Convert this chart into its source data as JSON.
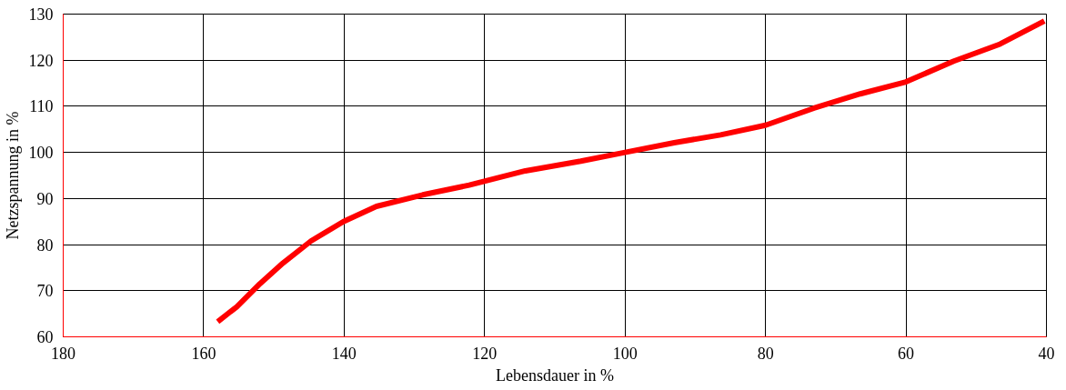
{
  "chart_data": {
    "type": "line",
    "xlabel": "Lebensdauer in %",
    "ylabel": "Netzspannung in %",
    "xlim": [
      180,
      40
    ],
    "ylim": [
      60,
      130
    ],
    "xticks": [
      180,
      160,
      140,
      120,
      100,
      80,
      60,
      40
    ],
    "yticks": [
      60,
      70,
      80,
      90,
      100,
      110,
      120,
      130
    ],
    "grid": true,
    "line_style": "solid",
    "marker": "none",
    "series": [
      {
        "color": "#ff0000",
        "x": [
          158,
          155.3,
          152,
          148.7,
          144.7,
          140.1,
          135.4,
          128.8,
          122.2,
          114.2,
          106.3,
          100,
          93,
          86.4,
          80,
          73.1,
          66.5,
          60,
          53.2,
          46.6,
          40.3
        ],
        "values": [
          63.3,
          66.5,
          71.5,
          76,
          80.8,
          85,
          88.3,
          90.8,
          92.9,
          96,
          98.1,
          100,
          102.1,
          103.8,
          105.9,
          109.6,
          112.7,
          115.3,
          119.8,
          123.5,
          128.5
        ]
      }
    ]
  }
}
